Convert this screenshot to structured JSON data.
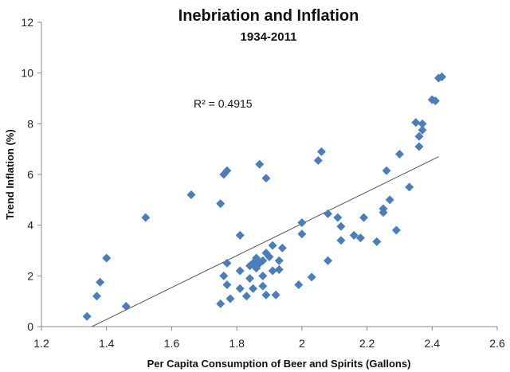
{
  "chart_data": {
    "type": "scatter",
    "title": "Inebriation and Inflation",
    "subtitle": "1934-2011",
    "xlabel": "Per Capita Consumption of Beer and Spirits (Gallons)",
    "ylabel": "Trend Inflation (%)",
    "xlim": [
      1.2,
      2.6
    ],
    "ylim": [
      0,
      12
    ],
    "x_ticks": [
      "1.2",
      "1.4",
      "1.6",
      "1.8",
      "2",
      "2.2",
      "2.4",
      "2.6"
    ],
    "y_ticks": [
      "0",
      "2",
      "4",
      "6",
      "8",
      "10",
      "12"
    ],
    "grid": false,
    "annotation": "R² = 0.4915",
    "marker_color": "#4a7ebb",
    "trendline_color": "#555555",
    "trendline": {
      "x": [
        1.355,
        2.42
      ],
      "y": [
        0.0,
        6.7
      ]
    },
    "points": [
      [
        1.34,
        0.4
      ],
      [
        1.37,
        1.2
      ],
      [
        1.38,
        1.75
      ],
      [
        1.4,
        2.7
      ],
      [
        1.46,
        0.8
      ],
      [
        1.52,
        4.3
      ],
      [
        1.66,
        5.2
      ],
      [
        1.75,
        4.85
      ],
      [
        1.75,
        0.9
      ],
      [
        1.76,
        6.0
      ],
      [
        1.77,
        6.15
      ],
      [
        1.76,
        2.0
      ],
      [
        1.77,
        2.5
      ],
      [
        1.77,
        1.65
      ],
      [
        1.78,
        1.1
      ],
      [
        1.81,
        3.6
      ],
      [
        1.81,
        2.2
      ],
      [
        1.81,
        1.5
      ],
      [
        1.83,
        1.2
      ],
      [
        1.84,
        2.4
      ],
      [
        1.84,
        1.9
      ],
      [
        1.85,
        2.5
      ],
      [
        1.85,
        1.5
      ],
      [
        1.86,
        2.3
      ],
      [
        1.86,
        2.7
      ],
      [
        1.87,
        6.4
      ],
      [
        1.87,
        2.5
      ],
      [
        1.88,
        2.6
      ],
      [
        1.88,
        2.0
      ],
      [
        1.88,
        1.6
      ],
      [
        1.89,
        5.85
      ],
      [
        1.89,
        2.9
      ],
      [
        1.89,
        1.25
      ],
      [
        1.9,
        2.75
      ],
      [
        1.91,
        3.2
      ],
      [
        1.91,
        2.2
      ],
      [
        1.92,
        1.25
      ],
      [
        1.93,
        2.6
      ],
      [
        1.93,
        2.25
      ],
      [
        1.94,
        3.1
      ],
      [
        1.99,
        1.65
      ],
      [
        2.0,
        4.1
      ],
      [
        2.0,
        3.65
      ],
      [
        2.03,
        1.95
      ],
      [
        2.05,
        6.55
      ],
      [
        2.06,
        6.9
      ],
      [
        2.08,
        4.45
      ],
      [
        2.08,
        2.6
      ],
      [
        2.11,
        4.3
      ],
      [
        2.12,
        3.95
      ],
      [
        2.12,
        3.4
      ],
      [
        2.16,
        3.6
      ],
      [
        2.18,
        3.5
      ],
      [
        2.19,
        4.3
      ],
      [
        2.23,
        3.35
      ],
      [
        2.25,
        4.65
      ],
      [
        2.25,
        4.5
      ],
      [
        2.26,
        6.15
      ],
      [
        2.27,
        5.0
      ],
      [
        2.29,
        3.8
      ],
      [
        2.3,
        6.8
      ],
      [
        2.33,
        5.5
      ],
      [
        2.35,
        8.05
      ],
      [
        2.36,
        7.5
      ],
      [
        2.36,
        7.1
      ],
      [
        2.37,
        8.0
      ],
      [
        2.37,
        7.75
      ],
      [
        2.4,
        8.95
      ],
      [
        2.41,
        8.9
      ],
      [
        2.42,
        9.8
      ],
      [
        2.43,
        9.85
      ]
    ]
  }
}
